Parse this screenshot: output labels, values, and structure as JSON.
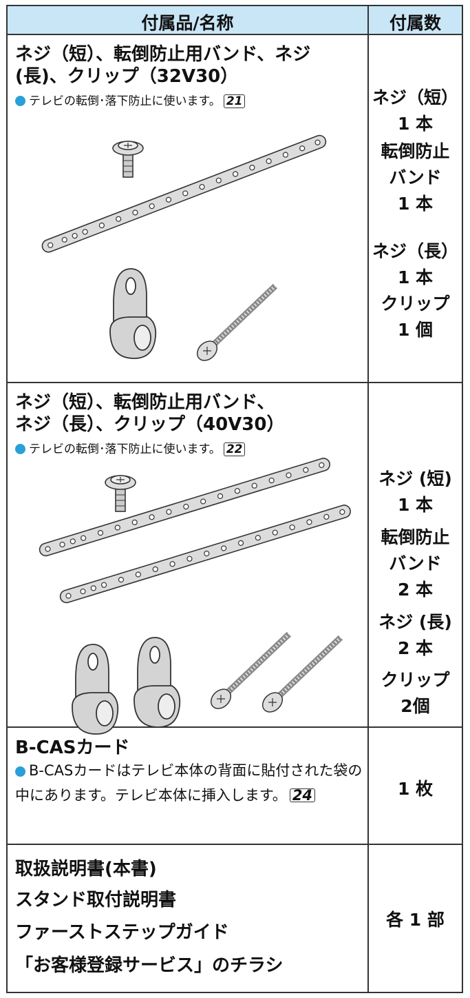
{
  "header": {
    "item": "付属品/名称",
    "count": "付属数"
  },
  "rows": [
    {
      "title_lines": [
        "ネジ（短）、転倒防止用バンド、ネジ",
        "(長)、クリップ（32V30）"
      ],
      "note": "テレビの転倒･落下防止に使います。",
      "page_ref": "21",
      "quantity_lines": [
        "ネジ（短）",
        "1 本",
        "転倒防止",
        "バンド",
        "1 本",
        "ネジ（長）",
        "1 本",
        "クリップ",
        "1 個"
      ]
    },
    {
      "title_lines": [
        "ネジ（短）、転倒防止用バンド、",
        "ネジ（長）、クリップ（40V30）"
      ],
      "note": "テレビの転倒･落下防止に使います。",
      "page_ref": "22",
      "quantity_lines": [
        "ネジ (短)",
        "1 本",
        "転倒防止",
        "バンド",
        "2 本",
        "ネジ (長)",
        "2 本",
        "クリップ",
        "2個"
      ]
    },
    {
      "title_lines": [
        "B-CASカード"
      ],
      "note": "B-CASカードはテレビ本体の背面に貼付された袋の中にあります。テレビ本体に挿入します。",
      "page_ref": "24",
      "quantity_lines": [
        "1 枚"
      ]
    },
    {
      "title_lines": [
        "取扱説明書(本書)",
        "スタンド取付説明書",
        "ファーストステップガイド",
        "「お客様登録サービス」のチラシ"
      ],
      "quantity_lines": [
        "各 1 部"
      ]
    }
  ]
}
